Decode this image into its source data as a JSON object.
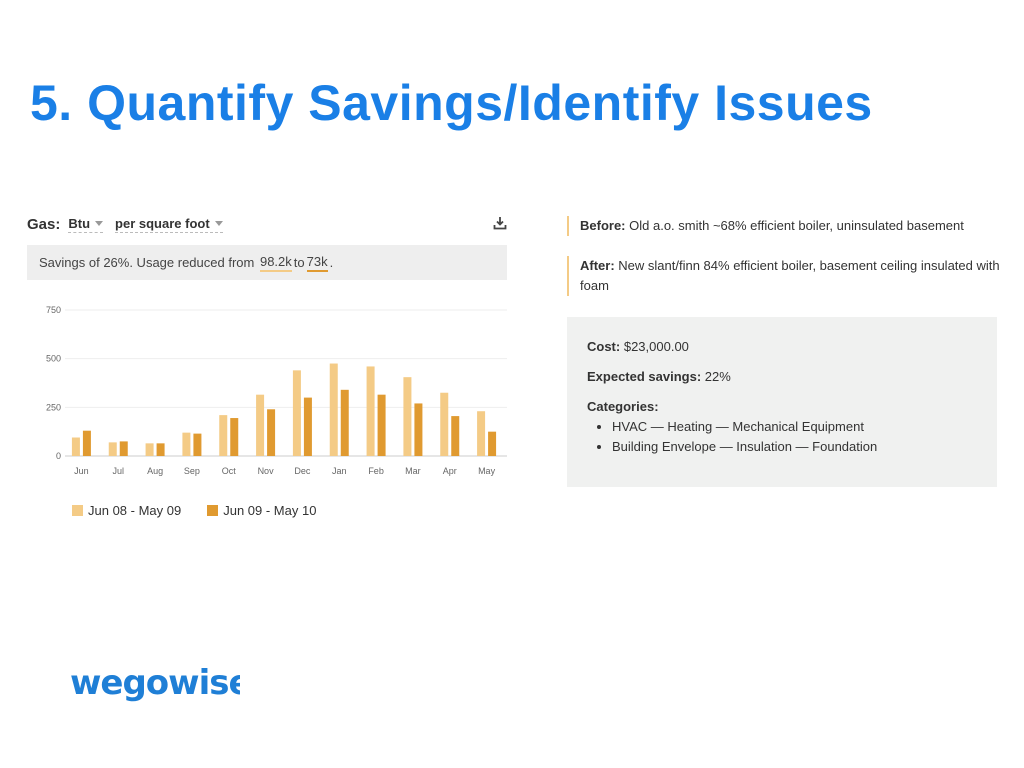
{
  "slide": {
    "title": "5. Quantify Savings/Identify Issues",
    "title_color": "#1a7fe6"
  },
  "gas_panel": {
    "label": "Gas:",
    "unit_dropdown": "Btu",
    "normalization_dropdown": "per square foot",
    "download_icon": "download-icon",
    "savings_text_prefix": "Savings of 26%. Usage reduced from",
    "from_value": "98.2k",
    "to_word": "to",
    "to_value": "73k",
    "end_punct": "."
  },
  "chart_data": {
    "type": "bar",
    "categories": [
      "Jun",
      "Jul",
      "Aug",
      "Sep",
      "Oct",
      "Nov",
      "Dec",
      "Jan",
      "Feb",
      "Mar",
      "Apr",
      "May"
    ],
    "series": [
      {
        "name": "Jun 08 - May 09",
        "color": "#f4cb86",
        "values": [
          95,
          70,
          65,
          120,
          210,
          315,
          440,
          475,
          460,
          405,
          325,
          230
        ]
      },
      {
        "name": "Jun 09 - May 10",
        "color": "#e09a30",
        "values": [
          130,
          75,
          65,
          115,
          195,
          240,
          300,
          340,
          315,
          270,
          205,
          125
        ]
      }
    ],
    "ylim": [
      0,
      750
    ],
    "yticks": [
      0,
      250,
      500,
      750
    ],
    "grid": true,
    "legend": "bottom-left"
  },
  "notes": {
    "before_label": "Before:",
    "before_text": "Old a.o. smith ~68% efficient boiler, uninsulated basement",
    "after_label": "After:",
    "after_text": "New slant/finn 84% efficient boiler, basement ceiling insulated with foam"
  },
  "project": {
    "cost_label": "Cost:",
    "cost_value": "$23,000.00",
    "savings_label": "Expected savings:",
    "savings_value": "22%",
    "categories_label": "Categories:",
    "categories": [
      "HVAC — Heating — Mechanical Equipment",
      "Building Envelope — Insulation — Foundation"
    ]
  },
  "logo": {
    "text": "wegowise",
    "color": "#1f7fd6"
  }
}
